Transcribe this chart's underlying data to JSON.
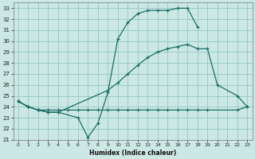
{
  "bg_color": "#cce8e4",
  "grid_color": "#99ccc8",
  "line_color": "#1a6e65",
  "xlabel": "Humidex (Indice chaleur)",
  "ylim": [
    21,
    33.5
  ],
  "xlim": [
    -0.5,
    23.5
  ],
  "yticks": [
    21,
    22,
    23,
    24,
    25,
    26,
    27,
    28,
    29,
    30,
    31,
    32,
    33
  ],
  "xticks": [
    0,
    1,
    2,
    3,
    4,
    5,
    6,
    7,
    8,
    9,
    10,
    11,
    12,
    13,
    14,
    15,
    16,
    17,
    18,
    19,
    20,
    21,
    22,
    23
  ],
  "line1_x": [
    0,
    1,
    2,
    3,
    4,
    6,
    7,
    8,
    9,
    10,
    11,
    12,
    13,
    14,
    15,
    16,
    17,
    18
  ],
  "line1_y": [
    24.5,
    24.0,
    23.7,
    23.5,
    23.5,
    23.0,
    21.2,
    22.5,
    25.3,
    30.2,
    31.7,
    32.5,
    32.8,
    32.8,
    32.8,
    33.0,
    33.0,
    31.3
  ],
  "line2_x": [
    0,
    1,
    2,
    3,
    4,
    9,
    10,
    11,
    12,
    13,
    14,
    15,
    16,
    17,
    18,
    19,
    20,
    22,
    23
  ],
  "line2_y": [
    24.5,
    24.0,
    23.7,
    23.5,
    23.5,
    25.5,
    26.2,
    27.0,
    27.8,
    28.5,
    29.0,
    29.3,
    29.5,
    29.7,
    29.3,
    29.3,
    26.0,
    25.0,
    24.0
  ],
  "line3_x": [
    0,
    1,
    2,
    3,
    4,
    5,
    6,
    7,
    8,
    9,
    10,
    11,
    12,
    13,
    14,
    15,
    16,
    17,
    18,
    19,
    22,
    23
  ],
  "line3_y": [
    24.5,
    24.0,
    23.7,
    23.7,
    23.7,
    23.7,
    23.7,
    23.7,
    23.7,
    23.7,
    23.7,
    23.7,
    23.7,
    23.7,
    23.7,
    23.7,
    23.7,
    23.7,
    23.7,
    23.7,
    23.7,
    24.0
  ]
}
